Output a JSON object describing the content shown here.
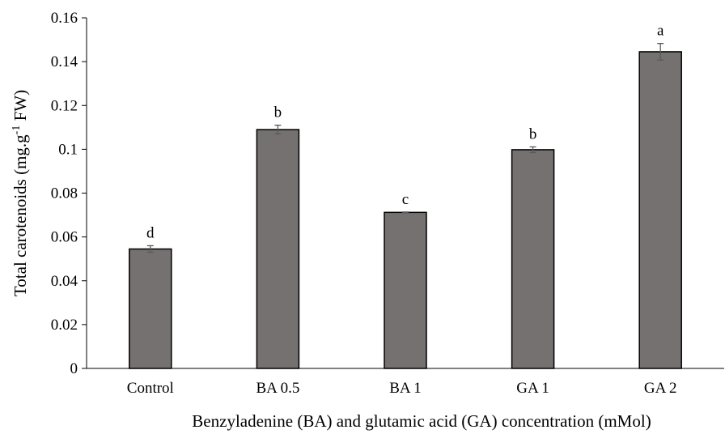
{
  "chart_data": {
    "type": "bar",
    "categories": [
      "Control",
      "BA 0.5",
      "BA 1",
      "GA 1",
      "GA 2"
    ],
    "values": [
      0.0545,
      0.109,
      0.0712,
      0.0998,
      0.1445
    ],
    "errors": [
      0.0015,
      0.002,
      0.0002,
      0.0013,
      0.0038
    ],
    "significance": [
      "d",
      "b",
      "c",
      "b",
      "a"
    ],
    "ylim": [
      0,
      0.16
    ],
    "yticks": [
      "0",
      "0.02",
      "0.04",
      "0.06",
      "0.08",
      "0.1",
      "0.12",
      "0.14",
      "0.16"
    ],
    "ylabel_main": "Total carotenoids (mg.g",
    "ylabel_sup": "-1",
    "ylabel_tail": " FW)",
    "xlabel": "Benzyladenine (BA) and glutamic acid (GA) concentration (mMol)",
    "grid": false,
    "colors": {
      "bar_fill": "#767171",
      "bar_stroke": "#000000",
      "errorbar": "#595959",
      "axis": "#000000"
    }
  }
}
